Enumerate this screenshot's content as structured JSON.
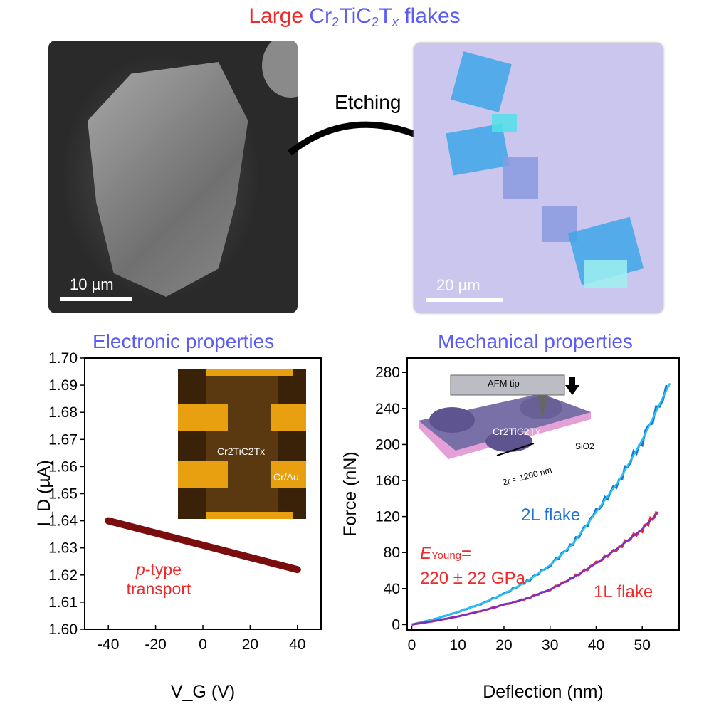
{
  "title": {
    "part1": "Large",
    "part2": "Cr",
    "s1": "2",
    "part3": "TiC",
    "s2": "2",
    "part4": "T",
    "s3": "x",
    "part5": " flakes"
  },
  "colors": {
    "red": "#ee2a2a",
    "blue": "#5a5cf2",
    "line_dark": "#7a0d0d",
    "curve_2L_data": "#1f6fd8",
    "curve_2L_fit": "#22c4ee",
    "curve_1L_data": "#ee2a2a",
    "curve_1L_fit": "#7a30c8"
  },
  "sem_image": {
    "scale": "10 µm"
  },
  "optical_image": {
    "scale": "20 µm"
  },
  "arrow_label": "Etching",
  "electronic": {
    "heading": "Electronic properties",
    "inset_flake": "Cr2TiC2Tx",
    "inset_contact": "Cr/Au",
    "annotation_1": "p",
    "annotation_2": "-type",
    "annotation_3": "transport"
  },
  "mechanical": {
    "heading": "Mechanical properties",
    "afm_tip": "AFM tip",
    "flake": "Cr2TiC2Tx",
    "substrate": "SiO2",
    "hole": "2r = 1200 nm",
    "label_2L": "2L flake",
    "label_1L": "1L flake",
    "young_1": "E",
    "young_sub": "Young",
    "young_2": "=",
    "young_value": "220 ± 22 GPa"
  },
  "chart_data": [
    {
      "type": "line",
      "title": "Electronic properties",
      "xlabel": "V_G (V)",
      "ylabel": "I_D (µA)",
      "xlim": [
        -50,
        50
      ],
      "ylim": [
        1.6,
        1.7
      ],
      "xticks": [
        "-40",
        "-20",
        "0",
        "20",
        "40"
      ],
      "yticks": [
        "1.60",
        "1.61",
        "1.62",
        "1.63",
        "1.64",
        "1.65",
        "1.66",
        "1.67",
        "1.68",
        "1.69",
        "1.70"
      ],
      "series": [
        {
          "name": "I_D",
          "x": [
            -40,
            40
          ],
          "y": [
            1.64,
            1.622
          ]
        }
      ]
    },
    {
      "type": "line",
      "title": "Mechanical properties",
      "xlabel": "Deflection (nm)",
      "ylabel": "Force (nN)",
      "xlim": [
        -1,
        58
      ],
      "ylim": [
        -6,
        296
      ],
      "xticks": [
        "0",
        "10",
        "20",
        "30",
        "40",
        "50"
      ],
      "yticks": [
        "0",
        "40",
        "80",
        "120",
        "160",
        "200",
        "240",
        "280"
      ],
      "series": [
        {
          "name": "2L flake",
          "x": [
            0,
            5,
            10,
            15,
            20,
            25,
            30,
            35,
            40,
            45,
            50,
            56
          ],
          "y": [
            0,
            6,
            14,
            23,
            34,
            48,
            66,
            90,
            125,
            160,
            205,
            268
          ]
        },
        {
          "name": "1L flake",
          "x": [
            0,
            5,
            10,
            15,
            20,
            25,
            30,
            35,
            40,
            45,
            50,
            53.5
          ],
          "y": [
            0,
            4,
            9,
            15,
            22,
            29,
            39,
            52,
            68,
            86,
            106,
            125
          ]
        }
      ]
    }
  ]
}
